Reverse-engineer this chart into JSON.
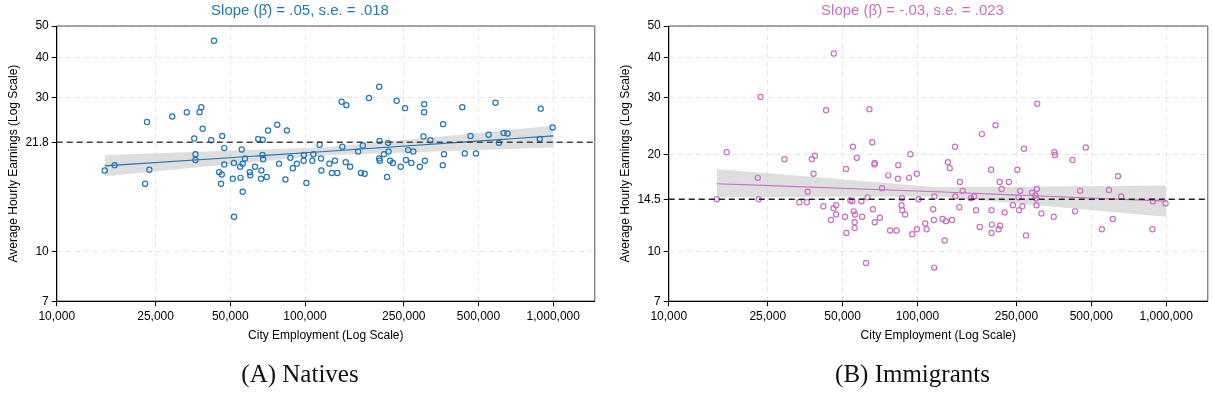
{
  "chart_data": [
    {
      "type": "scatter",
      "title": "Slope (β̂) = .05, s.e. = .018",
      "xlabel": "City Employment (Log Scale)",
      "ylabel": "Average Hourly Earnings (Log Scale)",
      "log": "xy",
      "grid": true,
      "legend": false,
      "xlim": [
        10000,
        1470000
      ],
      "ylim": [
        7,
        50
      ],
      "xticks": [
        {
          "value": 10000,
          "label": "10,000"
        },
        {
          "value": 25000,
          "label": "25,000"
        },
        {
          "value": 50000,
          "label": "50,000"
        },
        {
          "value": 100000,
          "label": "100,000"
        },
        {
          "value": 250000,
          "label": "250,000"
        },
        {
          "value": 500000,
          "label": "500,000"
        },
        {
          "value": 1000000,
          "label": "1,000,000"
        }
      ],
      "yticks": [
        7,
        10,
        21.8,
        30,
        40,
        50
      ],
      "ref_lines": [
        {
          "axis": "y",
          "value": 21.8,
          "color": "#444444",
          "line_style": "dashed"
        }
      ],
      "annotations": [
        "(A) Natives"
      ],
      "series": [
        {
          "type": "scatter",
          "marker": "circle",
          "color": "#1f77b4",
          "x": [
            15600,
            17100,
            23100,
            23600,
            22700,
            29200,
            33400,
            37600,
            38200,
            38700,
            35800,
            36200,
            36200,
            41900,
            43000,
            46400,
            47300,
            47300,
            45100,
            46200,
            45900,
            51800,
            51700,
            51200,
            55600,
            56100,
            54800,
            55000,
            56100,
            57300,
            59900,
            60200,
            62900,
            66700,
            66500,
            64800,
            67600,
            67400,
            67800,
            70100,
            71000,
            77300,
            78600,
            84500,
            83400,
            87300,
            89300,
            92800,
            99000,
            98700,
            101300,
            108100,
            107000,
            114500,
            116000,
            116400,
            125400,
            128300,
            135000,
            132000,
            140400,
            146800,
            141300,
            145900,
            152000,
            163700,
            171000,
            168000,
            174000,
            181000,
            199000,
            199600,
            199000,
            200000,
            208000,
            216000,
            217000,
            220000,
            226000,
            214000,
            234000,
            253000,
            243000,
            255000,
            260000,
            268000,
            273000,
            290000,
            302000,
            302000,
            300000,
            320000,
            304000,
            360000,
            363000,
            359000,
            430000,
            440000,
            464000,
            488000,
            549000,
            585000,
            604000,
            631000,
            654000,
            890000,
            882000,
            994000
          ],
          "values": [
            17.8,
            18.5,
            25.2,
            17.9,
            16.2,
            26.2,
            27.0,
            27.0,
            28.0,
            24.0,
            22.4,
            20.0,
            19.2,
            22.1,
            45.0,
            22.8,
            20.9,
            18.6,
            17.6,
            17.3,
            16.2,
            12.8,
            18.8,
            16.8,
            20.7,
            18.7,
            18.3,
            16.9,
            15.3,
            19.4,
            17.6,
            17.2,
            18.3,
            17.8,
            16.8,
            22.3,
            22.2,
            19.9,
            19.3,
            17.0,
            23.7,
            24.7,
            18.7,
            23.7,
            16.7,
            19.5,
            18.1,
            18.7,
            19.9,
            19.1,
            16.3,
            20.0,
            19.1,
            21.4,
            19.4,
            17.8,
            18.7,
            17.5,
            17.5,
            19.1,
            29.1,
            28.4,
            21.1,
            18.9,
            18.3,
            20.4,
            21.3,
            17.5,
            17.4,
            29.9,
            32.4,
            22.0,
            19.4,
            19.1,
            20.0,
            21.7,
            20.4,
            19.1,
            18.8,
            17.0,
            29.3,
            27.8,
            18.3,
            19.2,
            20.6,
            18.8,
            20.4,
            18.3,
            28.6,
            27.0,
            22.7,
            22.1,
            19.1,
            24.8,
            20.0,
            18.5,
            28.0,
            20.1,
            22.8,
            20.1,
            23.0,
            28.9,
            21.7,
            23.3,
            23.2,
            27.7,
            22.3,
            24.2
          ]
        },
        {
          "type": "line",
          "marker": "none",
          "color": "#1f77b4",
          "x": [
            15600,
            120000,
            1000000
          ],
          "values": [
            18.4,
            20.4,
            22.8
          ],
          "lower": [
            17.1,
            19.85,
            21.0
          ],
          "upper": [
            19.9,
            21.0,
            24.5
          ]
        }
      ]
    },
    {
      "type": "scatter",
      "title": "Slope (β̂) = -.03, s.e. = .023",
      "xlabel": "City Employment (Log Scale)",
      "ylabel": "Average Hourly Earnings (Log Scale)",
      "log": "xy",
      "grid": true,
      "legend": false,
      "xlim": [
        10000,
        1470000
      ],
      "ylim": [
        7,
        50
      ],
      "xticks": [
        {
          "value": 10000,
          "label": "10,000"
        },
        {
          "value": 25000,
          "label": "25,000"
        },
        {
          "value": 50000,
          "label": "50,000"
        },
        {
          "value": 100000,
          "label": "100,000"
        },
        {
          "value": 250000,
          "label": "250,000"
        },
        {
          "value": 500000,
          "label": "500,000"
        },
        {
          "value": 1000000,
          "label": "1,000,000"
        }
      ],
      "yticks": [
        7,
        10,
        14.5,
        20,
        30,
        40,
        50
      ],
      "ref_lines": [
        {
          "axis": "y",
          "value": 14.5,
          "color": "#222222",
          "line_style": "dashed"
        }
      ],
      "annotations": [
        "(B) Immigrants"
      ],
      "series": [
        {
          "type": "scatter",
          "marker": "circle",
          "color": "#cc6fc4",
          "x": [
            15600,
            17100,
            22800,
            23400,
            23000,
            29200,
            33500,
            35900,
            36200,
            37600,
            38700,
            38200,
            41800,
            42900,
            46100,
            46000,
            47100,
            47100,
            44900,
            51100,
            51600,
            51800,
            53700,
            54700,
            55000,
            55400,
            56100,
            55900,
            55900,
            57000,
            59900,
            59500,
            62100,
            63000,
            64100,
            65800,
            66200,
            67300,
            67100,
            67300,
            70600,
            72000,
            76300,
            77600,
            82400,
            83700,
            83400,
            86300,
            86900,
            89200,
            86600,
            92500,
            93700,
            95300,
            99400,
            99400,
            101000,
            107400,
            108800,
            115700,
            116400,
            117000,
            116700,
            126200,
            128700,
            130000,
            132600,
            134800,
            137500,
            141600,
            142000,
            147400,
            148100,
            151800,
            164000,
            169000,
            172000,
            178000,
            181500,
            197700,
            198500,
            198500,
            199000,
            206000,
            214000,
            218000,
            215000,
            212000,
            224000,
            233000,
            242000,
            252000,
            255000,
            259000,
            256000,
            264000,
            273000,
            289000,
            298000,
            299000,
            302000,
            301000,
            303000,
            268000,
            315000,
            353000,
            355000,
            357000,
            420000,
            430000,
            451000,
            475000,
            551000,
            589000,
            610000,
            640000,
            659000,
            884000,
            880000,
            994000
          ],
          "values": [
            14.5,
            20.3,
            16.9,
            30.1,
            14.5,
            19.3,
            14.2,
            14.2,
            15.3,
            19.3,
            19.8,
            17.4,
            13.8,
            27.4,
            41.1,
            13.6,
            13.9,
            13.0,
            12.5,
            12.8,
            18.0,
            11.4,
            14.4,
            14.3,
            21.1,
            13.3,
            13.0,
            12.3,
            11.8,
            19.5,
            12.8,
            14.3,
            9.2,
            14.7,
            27.6,
            21.8,
            13.5,
            18.8,
            18.6,
            12.3,
            12.7,
            15.7,
            17.2,
            11.6,
            11.6,
            18.5,
            16.8,
            13.9,
            13.4,
            13.0,
            14.6,
            16.9,
            20.0,
            11.3,
            11.7,
            17.4,
            14.5,
            12.2,
            11.7,
            13.5,
            12.5,
            14.8,
            8.9,
            12.6,
            10.8,
            12.4,
            18.9,
            18.1,
            12.5,
            21.1,
            14.8,
            13.7,
            16.4,
            15.4,
            14.6,
            14.8,
            13.4,
            11.9,
            23.1,
            17.9,
            13.4,
            11.4,
            12.1,
            24.6,
            16.4,
            15.6,
            12.0,
            11.7,
            13.2,
            16.4,
            13.9,
            17.9,
            14.7,
            15.4,
            13.4,
            13.8,
            11.2,
            15.2,
            14.9,
            14.6,
            15.6,
            13.9,
            28.7,
            20.8,
            13.1,
            12.8,
            20.3,
            19.9,
            19.2,
            13.3,
            15.4,
            21.0,
            11.7,
            15.5,
            12.6,
            17.1,
            14.8,
            14.3,
            11.7,
            14.1
          ]
        },
        {
          "type": "line",
          "marker": "none",
          "color": "#cc6fc4",
          "x": [
            15600,
            120000,
            1000000
          ],
          "values": [
            16.2,
            15.3,
            14.3
          ],
          "lower": [
            14.7,
            14.8,
            12.8
          ],
          "upper": [
            18.0,
            15.8,
            16.0
          ]
        }
      ]
    }
  ]
}
